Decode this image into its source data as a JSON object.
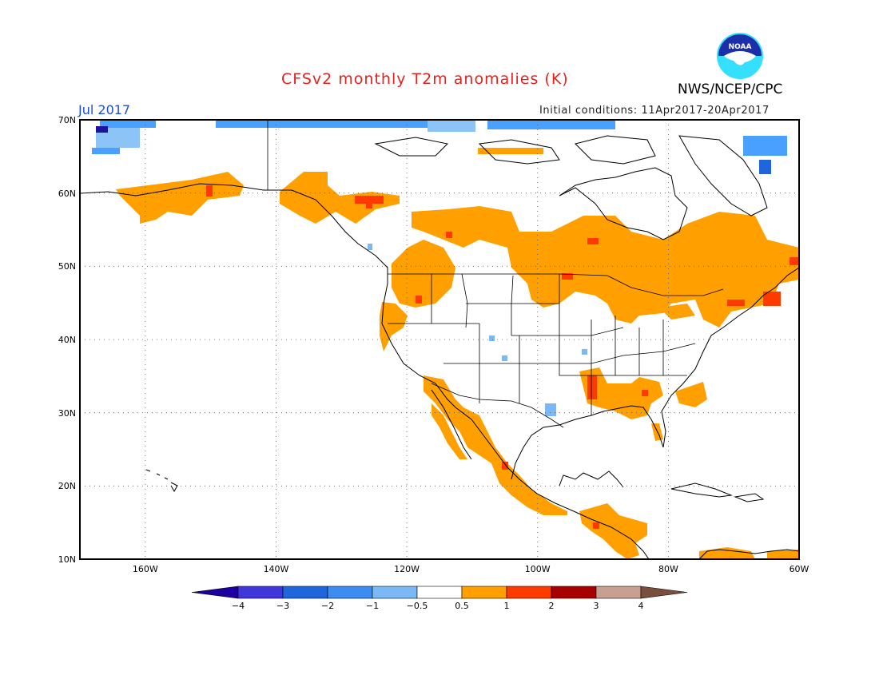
{
  "header": {
    "title": "CFSv2 monthly T2m anomalies (K)",
    "month": "Jul 2017",
    "initial_conditions": "Initial conditions: 11Apr2017-20Apr2017",
    "agency": "NWS/NCEP/CPC",
    "logo_text": "NOAA",
    "logo_icon": "noaa-logo-icon"
  },
  "map": {
    "projection": "lat-lon",
    "lon_range": [
      -170,
      -60
    ],
    "lat_range": [
      10,
      70
    ],
    "lat_labels": [
      "10N",
      "20N",
      "30N",
      "40N",
      "50N",
      "60N",
      "70N"
    ],
    "lon_labels": [
      "160W",
      "140W",
      "120W",
      "100W",
      "80W",
      "60W"
    ],
    "grid": "dotted",
    "anomaly_regions": [
      {
        "name": "Alaska",
        "level": "0.5-1",
        "color": "#ffa000"
      },
      {
        "name": "Yukon",
        "level": "0.5-1",
        "color": "#ffa000"
      },
      {
        "name": "Southern Canada",
        "level": "0.5-1",
        "color": "#ffa000"
      },
      {
        "name": "Pacific Northwest",
        "level": "0.5-1",
        "color": "#ffa000"
      },
      {
        "name": "Northern Plains",
        "level": "0.5-1",
        "color": "#ffa000"
      },
      {
        "name": "Great Lakes",
        "level": "0.5-1",
        "color": "#ffa000"
      },
      {
        "name": "New England",
        "level": "0.5-1",
        "color": "#ffa000"
      },
      {
        "name": "US Southeast",
        "level": "0.5-1",
        "color": "#ffa000"
      },
      {
        "name": "Lower Mississippi",
        "level": "1-2",
        "color": "#ff3a00"
      },
      {
        "name": "Mexico Pacific coast",
        "level": "0.5-1",
        "color": "#ffa000"
      },
      {
        "name": "Central America",
        "level": "0.5-1",
        "color": "#ffa000"
      },
      {
        "name": "Arctic coast",
        "level": "-1 to -0.5",
        "color": "#4aa0ff"
      }
    ]
  },
  "colorbar": {
    "labels": [
      "−4",
      "−3",
      "−2",
      "−1",
      "−0.5",
      "0.5",
      "1",
      "2",
      "3",
      "4"
    ],
    "colors": [
      "#1e00a0",
      "#4036d9",
      "#1f66dd",
      "#3d8df0",
      "#7ab9f5",
      "#ffffff",
      "#ffa000",
      "#ff3a00",
      "#a80000",
      "#c8a092",
      "#7a4e3c"
    ]
  }
}
